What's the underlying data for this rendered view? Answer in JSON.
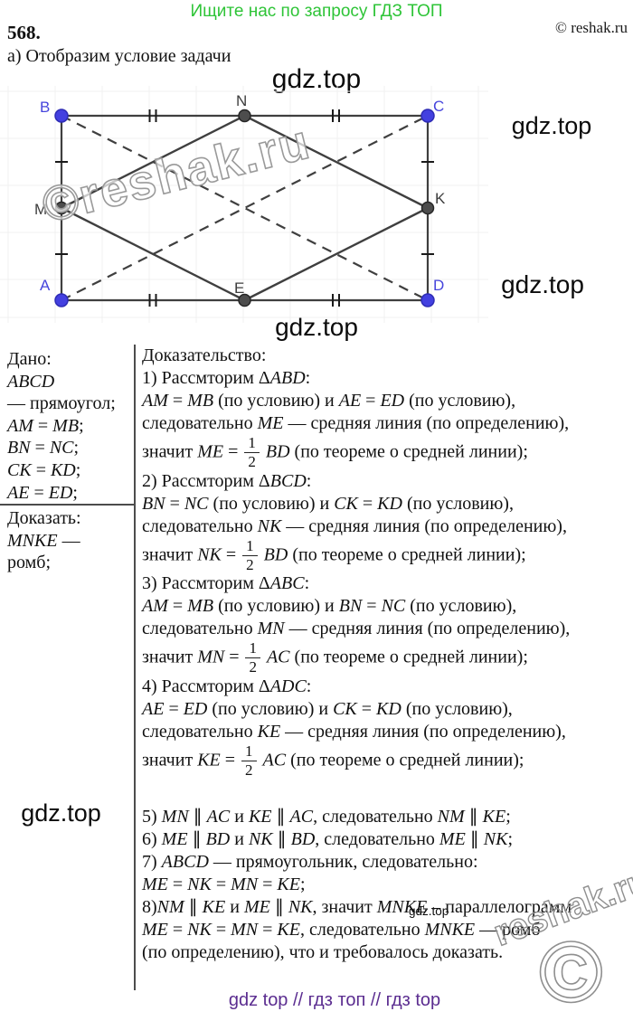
{
  "page": {
    "promo": "Ищите нас по запросу ГДЗ ТОП",
    "promo_color": "#2ec437",
    "problem_number": "568.",
    "copyright": "© reshak.ru",
    "part_label": "а) Отобразим условие задачи",
    "footer": "gdz top  //  гдз топ  //  гдз top",
    "footer_color": "#5b2d90"
  },
  "watermarks": {
    "gdz_top_big": "gdz.top",
    "gdz_right_1": "gdz.top",
    "gdz_right_2": "gdz.top",
    "gdz_below_figure": "gdz.top",
    "gdz_left_mid": "gdz.top",
    "gdz_small_inline": "gdz.top",
    "reshak_figure": "©reshak.ru",
    "reshak_corner_text": "reshak.ru",
    "reshak_corner_c": "©"
  },
  "figure": {
    "corner_labels": {
      "top_left": "B",
      "top_right": "C",
      "bottom_left": "A",
      "bottom_right": "D"
    },
    "midpoint_labels": {
      "top": "N",
      "left": "M",
      "right": "K",
      "bottom": "E"
    },
    "colors": {
      "corner": "#4645dc",
      "midpoint": "#3d3d3d",
      "line": "#3f3f3f",
      "tick": "#1a1a1a"
    }
  },
  "given": {
    "title": "Дано:",
    "lines": [
      "*ABCD*",
      "— прямоугол;",
      "*AM* = *MB*;",
      "*BN* = *NC*;",
      "*CK* = *KD*;",
      "*AE* = *ED*;"
    ],
    "prove_title": "Доказать:",
    "prove_lines": [
      "*MNKE* —",
      "ромб;"
    ]
  },
  "proof": {
    "title": "Доказательство:",
    "lines": [
      {
        "text": "1) Рассмторим Δ*ABD*:"
      },
      {
        "text": "*AM* = *MB* (по условию) и *AE* = *ED* (по условию),"
      },
      {
        "text": "следовательно *ME* — средняя линия (по определению),"
      },
      {
        "text": "значит *ME* = {1/2} *BD* (по теореме о средней линии);"
      },
      {
        "text": "2) Рассмторим Δ*BCD*:"
      },
      {
        "text": "*BN* = *NC* (по условию) и *CK* = *KD* (по условию),"
      },
      {
        "text": "следовательно *NK* — средняя линия (по определению),"
      },
      {
        "text": "значит *NK* = {1/2} *BD* (по теореме о средней линии);"
      },
      {
        "text": "3) Рассмторим Δ*ABC*:"
      },
      {
        "text": "*AM* = *MB* (по условию) и *BN* = *NC* (по условию),"
      },
      {
        "text": "следовательно *MN* — средняя линия (по определению),"
      },
      {
        "text": "значит *MN* = {1/2} *AC* (по теореме о средней линии);"
      },
      {
        "text": "4) Рассмторим Δ*ADC*:"
      },
      {
        "text": "*AE* = *ED* (по условию) и *CK* = *KD* (по условию),"
      },
      {
        "text": "следовательно *KE* — средняя линия (по определению),"
      },
      {
        "text": "значит *KE* = {1/2} *AC* (по теореме о средней линии);"
      },
      {
        "text": "5) *MN* ∥ *AC* и *KE* ∥ *AC*, следовательно *NM* ∥ *KE*;",
        "gap": true
      },
      {
        "text": "6) *ME* ∥ *BD* и *NK* ∥ *BD*, следовательно *ME* ∥ *NK*;"
      },
      {
        "text": "7) *ABCD* — прямоугольник, следовательно:"
      },
      {
        "text": "*ME* = *NK* = *MN* = *KE*;"
      },
      {
        "text": "8)*NM* ∥ *KE* и *ME* ∥ *NK*, значит *MNKE* – параллелограмм"
      },
      {
        "text": "*ME* = *NK* = *MN* = *KE*, следовательно *MNKE* — ромб"
      },
      {
        "text": "(по определению), что и требовалось доказать."
      }
    ]
  }
}
